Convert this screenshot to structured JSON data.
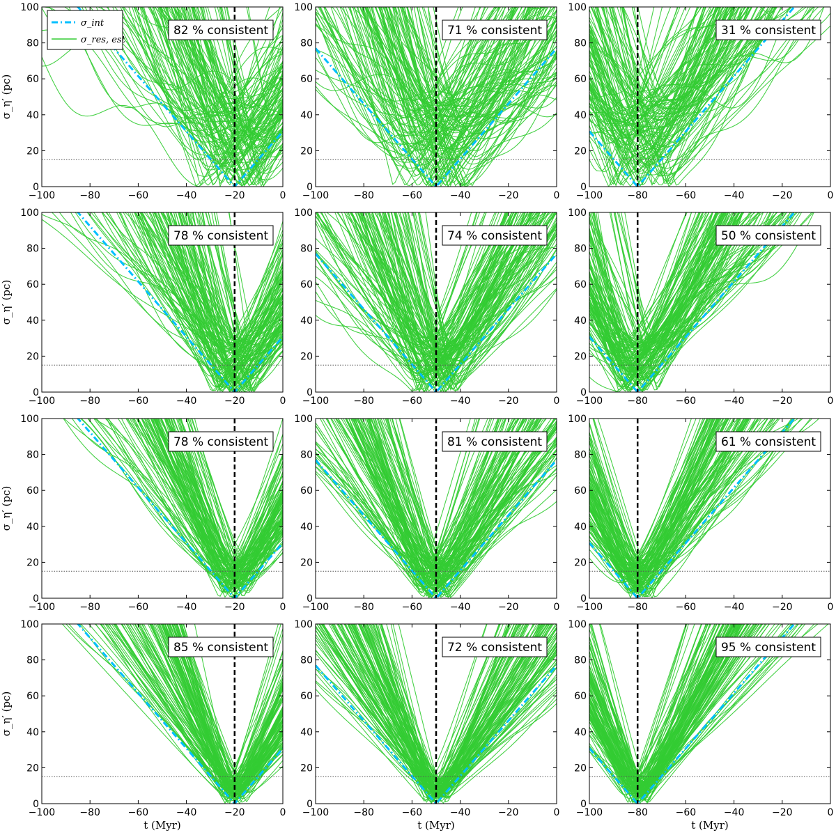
{
  "figure": {
    "x_axis_label": "t (Myr)",
    "y_axis_label": "σ_η′ (pc)",
    "legend": [
      {
        "label": "σ_int",
        "color": "#00bfff",
        "style": "dash-dot"
      },
      {
        "label": "σ_res, est",
        "color": "#33cc33",
        "style": "solid"
      }
    ],
    "colors": {
      "resampled": "#33cc33",
      "intrinsic": "#00bfff",
      "true_age": "#000000",
      "threshold": "#555555"
    }
  },
  "chart_data": [
    {
      "type": "line",
      "panel": "r1c1",
      "consistent_label": "82 % consistent",
      "true_age": -20,
      "spread": "wide",
      "xlim": [
        -100,
        0
      ],
      "ylim": [
        0,
        100
      ],
      "xticks": [
        "−100",
        "−80",
        "−60",
        "−40",
        "−20",
        "0"
      ],
      "yticks": [
        "0",
        "20",
        "40",
        "60",
        "80",
        "100"
      ],
      "threshold": 15
    },
    {
      "type": "line",
      "panel": "r1c2",
      "consistent_label": "71 % consistent",
      "true_age": -50,
      "spread": "wide",
      "xlim": [
        -100,
        0
      ],
      "ylim": [
        0,
        100
      ],
      "xticks": [
        "−100",
        "−80",
        "−60",
        "−40",
        "−20",
        "0"
      ],
      "yticks": [
        "0",
        "20",
        "40",
        "60",
        "80",
        "100"
      ],
      "threshold": 15
    },
    {
      "type": "line",
      "panel": "r1c3",
      "consistent_label": "31 % consistent",
      "true_age": -80,
      "spread": "wide",
      "xlim": [
        -100,
        0
      ],
      "ylim": [
        0,
        100
      ],
      "xticks": [
        "−100",
        "−80",
        "−60",
        "−40",
        "−20",
        "0"
      ],
      "yticks": [
        "0",
        "20",
        "40",
        "60",
        "80",
        "100"
      ],
      "threshold": 15
    },
    {
      "type": "line",
      "panel": "r2c1",
      "consistent_label": "78 % consistent",
      "true_age": -20,
      "spread": "medium",
      "xlim": [
        -100,
        0
      ],
      "ylim": [
        0,
        100
      ],
      "xticks": [
        "−100",
        "−80",
        "−60",
        "−40",
        "−20",
        "0"
      ],
      "yticks": [
        "0",
        "20",
        "40",
        "60",
        "80",
        "100"
      ],
      "threshold": 15
    },
    {
      "type": "line",
      "panel": "r2c2",
      "consistent_label": "74 % consistent",
      "true_age": -50,
      "spread": "medium",
      "xlim": [
        -100,
        0
      ],
      "ylim": [
        0,
        100
      ],
      "xticks": [
        "−100",
        "−80",
        "−60",
        "−40",
        "−20",
        "0"
      ],
      "yticks": [
        "0",
        "20",
        "40",
        "60",
        "80",
        "100"
      ],
      "threshold": 15
    },
    {
      "type": "line",
      "panel": "r2c3",
      "consistent_label": "50 % consistent",
      "true_age": -80,
      "spread": "medium",
      "xlim": [
        -100,
        0
      ],
      "ylim": [
        0,
        100
      ],
      "xticks": [
        "−100",
        "−80",
        "−60",
        "−40",
        "−20",
        "0"
      ],
      "yticks": [
        "0",
        "20",
        "40",
        "60",
        "80",
        "100"
      ],
      "threshold": 15
    },
    {
      "type": "line",
      "panel": "r3c1",
      "consistent_label": "78 % consistent",
      "true_age": -20,
      "spread": "narrow",
      "xlim": [
        -100,
        0
      ],
      "ylim": [
        0,
        100
      ],
      "xticks": [
        "−100",
        "−80",
        "−60",
        "−40",
        "−20",
        "0"
      ],
      "yticks": [
        "0",
        "20",
        "40",
        "60",
        "80",
        "100"
      ],
      "threshold": 15
    },
    {
      "type": "line",
      "panel": "r3c2",
      "consistent_label": "81 % consistent",
      "true_age": -50,
      "spread": "narrow",
      "xlim": [
        -100,
        0
      ],
      "ylim": [
        0,
        100
      ],
      "xticks": [
        "−100",
        "−80",
        "−60",
        "−40",
        "−20",
        "0"
      ],
      "yticks": [
        "0",
        "20",
        "40",
        "60",
        "80",
        "100"
      ],
      "threshold": 15
    },
    {
      "type": "line",
      "panel": "r3c3",
      "consistent_label": "61 % consistent",
      "true_age": -80,
      "spread": "narrow",
      "xlim": [
        -100,
        0
      ],
      "ylim": [
        0,
        100
      ],
      "xticks": [
        "−100",
        "−80",
        "−60",
        "−40",
        "−20",
        "0"
      ],
      "yticks": [
        "0",
        "20",
        "40",
        "60",
        "80",
        "100"
      ],
      "threshold": 15
    },
    {
      "type": "line",
      "panel": "r4c1",
      "consistent_label": "85 % consistent",
      "true_age": -20,
      "spread": "tight",
      "xlim": [
        -100,
        0
      ],
      "ylim": [
        0,
        100
      ],
      "xticks": [
        "−100",
        "−80",
        "−60",
        "−40",
        "−20",
        "0"
      ],
      "yticks": [
        "0",
        "20",
        "40",
        "60",
        "80",
        "100"
      ],
      "threshold": 15
    },
    {
      "type": "line",
      "panel": "r4c2",
      "consistent_label": "72 % consistent",
      "true_age": -50,
      "spread": "tight",
      "xlim": [
        -100,
        0
      ],
      "ylim": [
        0,
        100
      ],
      "xticks": [
        "−100",
        "−80",
        "−60",
        "−40",
        "−20",
        "0"
      ],
      "yticks": [
        "0",
        "20",
        "40",
        "60",
        "80",
        "100"
      ],
      "threshold": 15
    },
    {
      "type": "line",
      "panel": "r4c3",
      "consistent_label": "95 % consistent",
      "true_age": -80,
      "spread": "tight",
      "xlim": [
        -100,
        0
      ],
      "ylim": [
        0,
        100
      ],
      "xticks": [
        "−100",
        "−80",
        "−60",
        "−40",
        "−20",
        "0"
      ],
      "yticks": [
        "0",
        "20",
        "40",
        "60",
        "80",
        "100"
      ],
      "threshold": 15
    }
  ]
}
